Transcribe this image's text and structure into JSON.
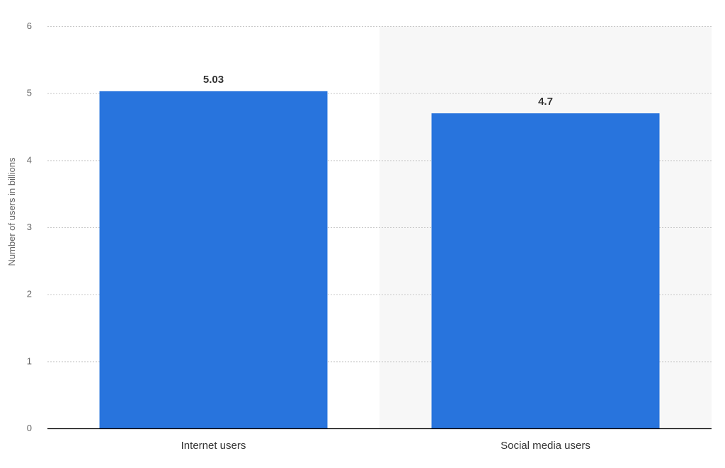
{
  "chart_data": {
    "type": "bar",
    "categories": [
      "Internet users",
      "Social media users"
    ],
    "values": [
      5.03,
      4.7
    ],
    "data_labels": [
      "5.03",
      "4.7"
    ],
    "title": "",
    "xlabel": "",
    "ylabel": "Number of users in billions",
    "ylim": [
      0,
      6
    ],
    "yticks": [
      0,
      1,
      2,
      3,
      4,
      5,
      6
    ],
    "grid": true,
    "legend": "none",
    "highlighted_category": "Social media users",
    "colors": {
      "bar": "#2874dd",
      "highlight_background": "#f7f7f7",
      "grid": "#c8c8c8",
      "baseline": "#000000"
    }
  }
}
